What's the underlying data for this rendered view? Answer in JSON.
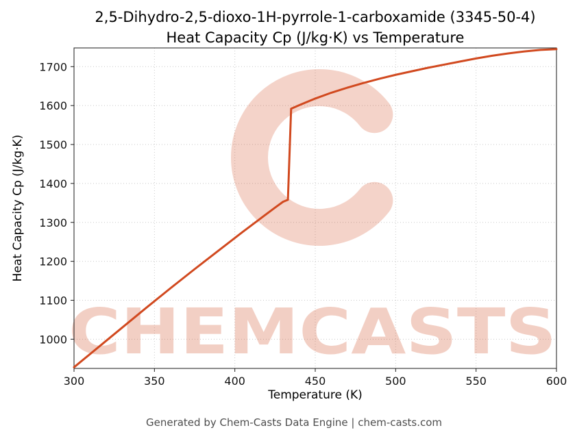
{
  "header": {
    "title_line1": "2,5-Dihydro-2,5-dioxo-1H-pyrrole-1-carboxamide (3345-50-4)",
    "title_line2": "Heat Capacity Cp (J/kg·K) vs Temperature"
  },
  "footer": {
    "credit": "Generated by Chem-Casts Data Engine | chem-casts.com"
  },
  "watermark": {
    "text": "CHEMCASTS",
    "logo_glyph": "C",
    "color": "#d1491f",
    "text_opacity": 0.26,
    "logo_opacity": 0.24
  },
  "chart_data": {
    "type": "line",
    "title": "2,5-Dihydro-2,5-dioxo-1H-pyrrole-1-carboxamide (3345-50-4) — Heat Capacity Cp (J/kg·K) vs Temperature",
    "xlabel": "Temperature (K)",
    "ylabel": "Heat Capacity Cp (J/kg·K)",
    "xlim": [
      300,
      600
    ],
    "ylim": [
      925,
      1748
    ],
    "xticks": [
      300,
      350,
      400,
      450,
      500,
      550,
      600
    ],
    "yticks": [
      1000,
      1100,
      1200,
      1300,
      1400,
      1500,
      1600,
      1700
    ],
    "grid": true,
    "legend": false,
    "line_color": "#d1491f",
    "series": [
      {
        "name": "Heat Capacity Cp",
        "color": "#d1491f",
        "x": [
          300,
          315,
          330,
          345,
          360,
          375,
          390,
          405,
          415,
          425,
          430,
          433,
          435,
          440,
          450,
          460,
          470,
          480,
          490,
          500,
          510,
          520,
          530,
          540,
          550,
          560,
          570,
          580,
          590,
          600
        ],
        "y": [
          928,
          979,
          1030,
          1081,
          1131,
          1180,
          1228,
          1276,
          1307,
          1338,
          1353,
          1358,
          1592,
          1601,
          1618,
          1633,
          1646,
          1658,
          1669,
          1679,
          1688,
          1697,
          1705,
          1713,
          1721,
          1728,
          1734,
          1739,
          1743,
          1745
        ]
      }
    ]
  }
}
